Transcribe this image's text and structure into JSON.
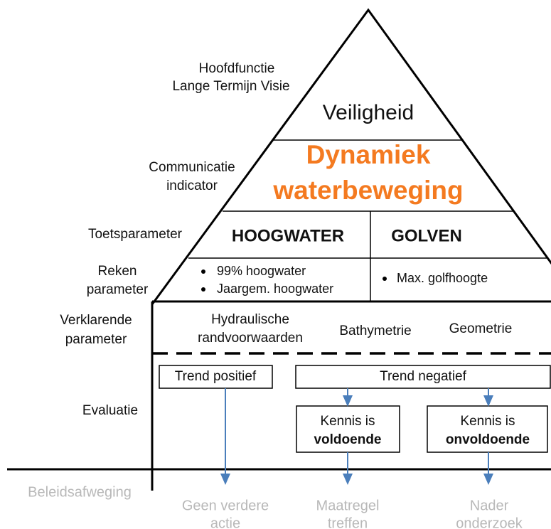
{
  "left_labels": {
    "hoofdfunctie": [
      "Hoofdfunctie",
      "Lange Termijn Visie"
    ],
    "communicatie": [
      "Communicatie",
      "indicator"
    ],
    "toetsparameter": [
      "Toetsparameter"
    ],
    "rekenparameter": [
      "Reken",
      "parameter"
    ],
    "verklarende": [
      "Verklarende",
      "parameter"
    ],
    "evaluatie": [
      "Evaluatie"
    ],
    "beleidsafweging": [
      "Beleidsafweging"
    ]
  },
  "pyramid": {
    "hoofdfunctie": "Veiligheid",
    "indicator": [
      "Dynamiek",
      "waterbeweging"
    ],
    "toets": [
      "HOOGWATER",
      "GOLVEN"
    ],
    "reken_hoogwater": [
      "99% hoogwater",
      "Jaargem. hoogwater"
    ],
    "reken_golven": [
      "Max. golfhoogte"
    ],
    "verklarend": [
      [
        "Hydraulische",
        "randvoorwaarden"
      ],
      [
        "Bathymetrie"
      ],
      [
        "Geometrie"
      ]
    ]
  },
  "evaluatie": {
    "trend_positief": "Trend positief",
    "trend_negatief": "Trend negatief",
    "voldoende": [
      "Kennis is",
      "voldoende"
    ],
    "onvoldoende": [
      "Kennis is",
      "onvoldoende"
    ]
  },
  "uitkomsten": [
    [
      "Geen verdere",
      "actie"
    ],
    [
      "Maatregel",
      "treffen"
    ],
    [
      "Nader",
      "onderzoek"
    ]
  ]
}
